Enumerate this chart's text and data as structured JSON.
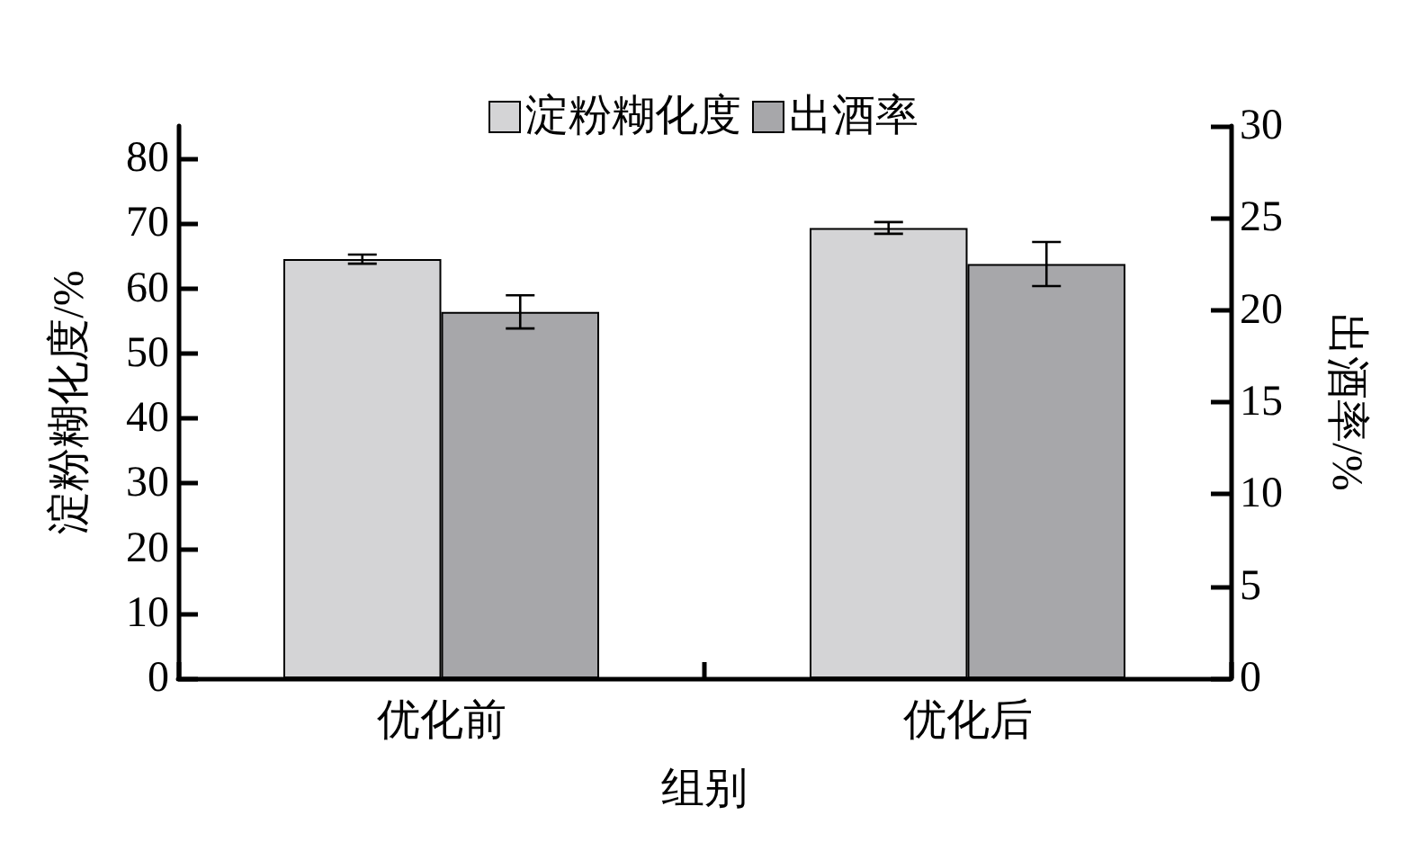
{
  "chart_data": {
    "type": "bar",
    "categories": [
      "优化前",
      "优化后"
    ],
    "xlabel": "组别",
    "ylabel": "淀粉糊化度/%",
    "y2label": "出酒率/%",
    "series": [
      {
        "name": "淀粉糊化度",
        "color": "#d4d4d6",
        "values": [
          64.5,
          69.3
        ],
        "errors": [
          0.7,
          0.9
        ]
      },
      {
        "name": "出酒率",
        "color": "#a7a7aa",
        "values": [
          19.9,
          22.5
        ],
        "errors": [
          0.9,
          1.2
        ],
        "axis": "y2"
      }
    ],
    "ylim": [
      0,
      85
    ],
    "yticks": [
      0,
      10,
      20,
      30,
      40,
      50,
      60,
      70,
      80
    ],
    "y2lim": [
      0,
      30
    ],
    "y2ticks": [
      0,
      5,
      10,
      15,
      20,
      25,
      30
    ],
    "legend": "top"
  }
}
